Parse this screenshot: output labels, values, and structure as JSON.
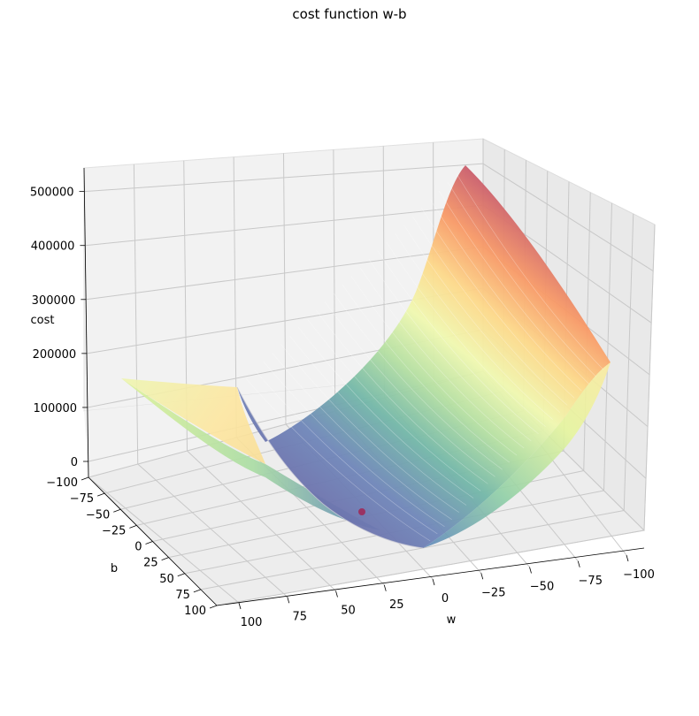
{
  "figure": {
    "title": "cost function w-b"
  },
  "chart_data": {
    "type": "surface",
    "title": "cost function w-b",
    "xlabel": "w",
    "ylabel": "b",
    "zlabel": "cost",
    "x_ticks": [
      "100",
      "75",
      "50",
      "25",
      "0",
      "−25",
      "−50",
      "−75",
      "−100"
    ],
    "y_ticks": [
      "−100",
      "−75",
      "−50",
      "−25",
      "0",
      "25",
      "50",
      "75",
      "100"
    ],
    "z_ticks": [
      "0",
      "100000",
      "200000",
      "300000",
      "400000",
      "500000"
    ],
    "xlim": [
      -100,
      100
    ],
    "ylim": [
      -100,
      100
    ],
    "zlim": [
      0,
      560000
    ],
    "colormap": "Spectral_r",
    "grid": true,
    "surface_corners": [
      {
        "w": -100,
        "b": -100,
        "cost": 535000
      },
      {
        "w": -100,
        "b": 100,
        "cost": 225000
      },
      {
        "w": 100,
        "b": -100,
        "cost": 150000
      },
      {
        "w": 100,
        "b": 100,
        "cost": 200000
      }
    ],
    "minimum_point": {
      "w": 18,
      "b": 35,
      "cost": 5000,
      "color": "#9e2a5a"
    }
  }
}
